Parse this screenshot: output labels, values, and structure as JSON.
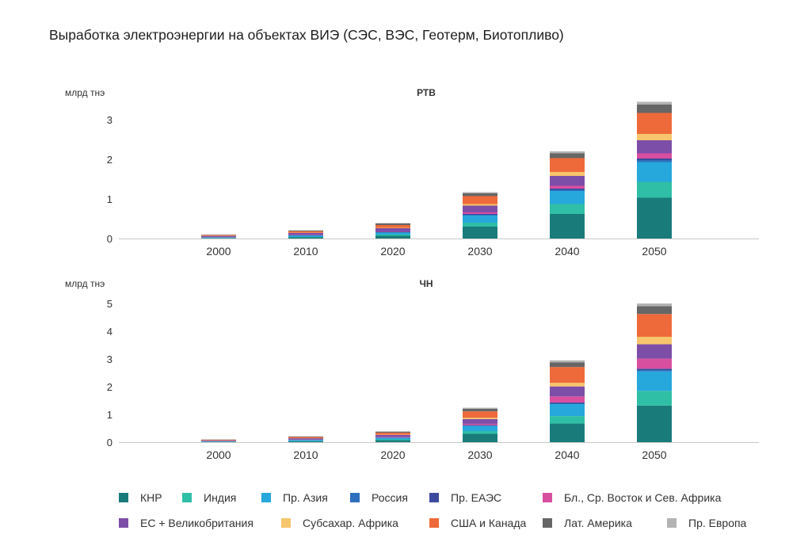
{
  "title": "Выработка электроэнергии на объектах ВИЭ (СЭС, ВЭС, Геотерм, Биотопливо)",
  "colors": {
    "КНР": "#1a7b7b",
    "Индия": "#2fbfa6",
    "Пр. Азия": "#26a8dc",
    "Россия": "#2f6fbd",
    "Пр. ЕАЭС": "#3c4a9e",
    "Бл., Ср. Восток и Сев. Африка": "#d94fa0",
    "ЕС + Великобритания": "#7d4ea8",
    "Субсахар. Африка": "#f7c56c",
    "США и Канада": "#ef6a3a",
    "Лат. Америка": "#666666",
    "Пр. Европа": "#b3b3b3"
  },
  "legend": [
    [
      "КНР",
      "Индия",
      "Пр. Азия",
      "Россия",
      "Пр. ЕАЭС",
      "Бл., Ср. Восток и Сев. Африка"
    ],
    [
      "ЕС + Великобритания",
      "Субсахар. Африка",
      "США и Канада",
      "Лат. Америка",
      "Пр. Европа"
    ]
  ],
  "chart_data": [
    {
      "type": "bar",
      "stacked": true,
      "title": "РТВ",
      "ylabel": "млрд тнэ",
      "ylim": [
        0,
        3.5
      ],
      "yticks": [
        0,
        1,
        2,
        3
      ],
      "categories": [
        "2000",
        "2010",
        "2020",
        "2030",
        "2040",
        "2050"
      ],
      "series": [
        {
          "name": "КНР",
          "values": [
            0.01,
            0.03,
            0.07,
            0.3,
            0.62,
            1.03
          ]
        },
        {
          "name": "Индия",
          "values": [
            0.005,
            0.01,
            0.03,
            0.1,
            0.25,
            0.4
          ]
        },
        {
          "name": "Пр. Азия",
          "values": [
            0.01,
            0.03,
            0.05,
            0.18,
            0.33,
            0.5
          ]
        },
        {
          "name": "Россия",
          "values": [
            0.005,
            0.01,
            0.01,
            0.02,
            0.03,
            0.05
          ]
        },
        {
          "name": "Пр. ЕАЭС",
          "values": [
            0.003,
            0.005,
            0.01,
            0.02,
            0.03,
            0.04
          ]
        },
        {
          "name": "Бл., Ср. Восток и Сев. Африка",
          "values": [
            0.002,
            0.005,
            0.01,
            0.04,
            0.07,
            0.13
          ]
        },
        {
          "name": "ЕС + Великобритания",
          "values": [
            0.03,
            0.05,
            0.08,
            0.17,
            0.25,
            0.33
          ]
        },
        {
          "name": "Субсахар. Африка",
          "values": [
            0.003,
            0.005,
            0.01,
            0.04,
            0.1,
            0.16
          ]
        },
        {
          "name": "США и Канада",
          "values": [
            0.02,
            0.04,
            0.07,
            0.2,
            0.35,
            0.53
          ]
        },
        {
          "name": "Лат. Америка",
          "values": [
            0.01,
            0.02,
            0.04,
            0.07,
            0.12,
            0.21
          ]
        },
        {
          "name": "Пр. Европа",
          "values": [
            0.002,
            0.005,
            0.01,
            0.03,
            0.05,
            0.07
          ]
        }
      ]
    },
    {
      "type": "bar",
      "stacked": true,
      "title": "ЧН",
      "ylabel": "млрд тнэ",
      "ylim": [
        0,
        5.2
      ],
      "yticks": [
        0,
        1,
        2,
        3,
        4,
        5
      ],
      "categories": [
        "2000",
        "2010",
        "2020",
        "2030",
        "2040",
        "2050"
      ],
      "series": [
        {
          "name": "КНР",
          "values": [
            0.01,
            0.03,
            0.07,
            0.3,
            0.67,
            1.32
          ]
        },
        {
          "name": "Индия",
          "values": [
            0.005,
            0.01,
            0.03,
            0.1,
            0.27,
            0.53
          ]
        },
        {
          "name": "Пр. Азия",
          "values": [
            0.01,
            0.03,
            0.05,
            0.18,
            0.43,
            0.7
          ]
        },
        {
          "name": "Россия",
          "values": [
            0.005,
            0.01,
            0.01,
            0.02,
            0.03,
            0.05
          ]
        },
        {
          "name": "Пр. ЕАЭС",
          "values": [
            0.003,
            0.005,
            0.01,
            0.02,
            0.03,
            0.05
          ]
        },
        {
          "name": "Бл., Ср. Восток и Сев. Африка",
          "values": [
            0.002,
            0.005,
            0.01,
            0.04,
            0.22,
            0.36
          ]
        },
        {
          "name": "ЕС + Великобритания",
          "values": [
            0.03,
            0.05,
            0.08,
            0.17,
            0.36,
            0.52
          ]
        },
        {
          "name": "Субсахар. Африка",
          "values": [
            0.003,
            0.005,
            0.01,
            0.05,
            0.13,
            0.27
          ]
        },
        {
          "name": "США и Канада",
          "values": [
            0.02,
            0.04,
            0.07,
            0.23,
            0.57,
            0.82
          ]
        },
        {
          "name": "Лат. Америка",
          "values": [
            0.01,
            0.02,
            0.04,
            0.09,
            0.17,
            0.28
          ]
        },
        {
          "name": "Пр. Европа",
          "values": [
            0.002,
            0.005,
            0.01,
            0.04,
            0.07,
            0.1
          ]
        }
      ]
    }
  ]
}
